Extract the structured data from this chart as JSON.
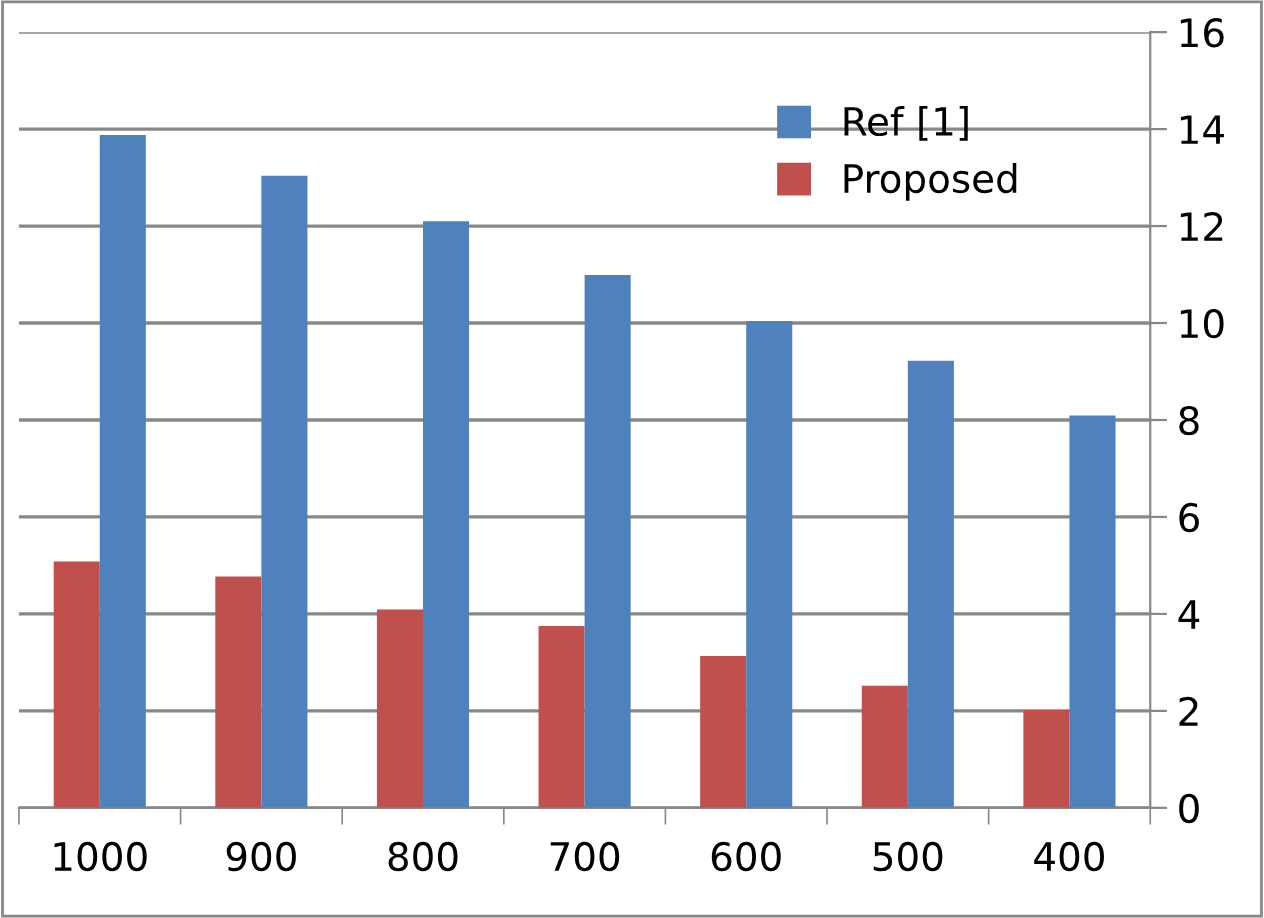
{
  "chart_data": {
    "type": "bar",
    "categories": [
      "1000",
      "900",
      "800",
      "700",
      "600",
      "500",
      "400"
    ],
    "series": [
      {
        "name": "Proposed",
        "color": "#c0504d",
        "values": [
          5.08,
          4.77,
          4.09,
          3.75,
          3.13,
          2.52,
          2.02
        ]
      },
      {
        "name": "Ref [1]",
        "color": "#4f81bd",
        "values": [
          13.88,
          13.04,
          12.1,
          10.99,
          10.04,
          9.22,
          8.09
        ]
      }
    ],
    "ylim": [
      0,
      16
    ],
    "yticks": [
      0,
      2,
      4,
      6,
      8,
      10,
      12,
      14,
      16
    ],
    "grid": "y",
    "legend": "top right"
  }
}
